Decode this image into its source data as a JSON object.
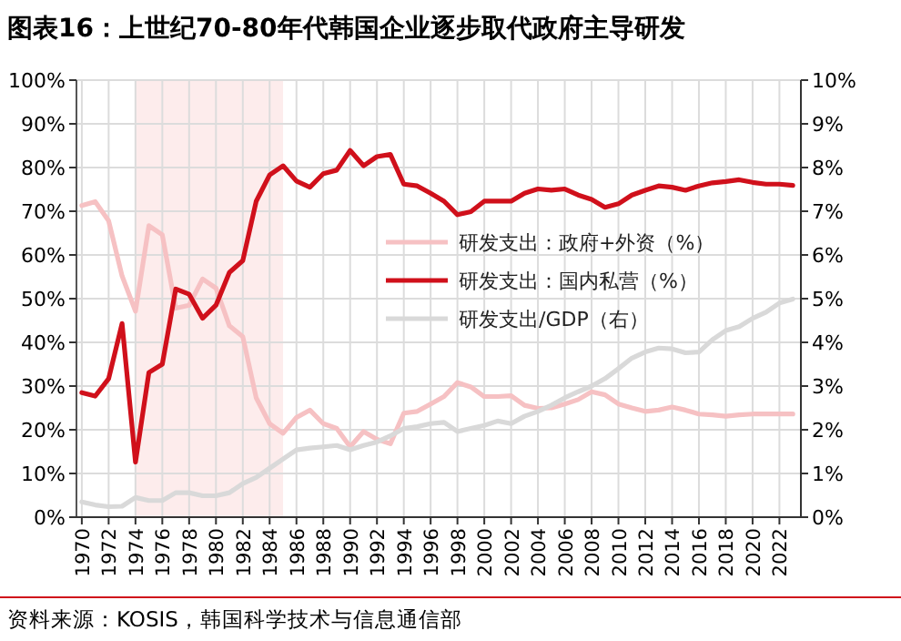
{
  "chart_data": {
    "type": "line",
    "title": "图表16：上世纪70-80年代韩国企业逐步取代政府主导研发",
    "annotations": [
      "资料来源：KOSIS，韩国科学技术与信息通信部"
    ],
    "x": [
      1970,
      1971,
      1972,
      1973,
      1974,
      1975,
      1976,
      1977,
      1978,
      1979,
      1980,
      1981,
      1982,
      1983,
      1984,
      1985,
      1986,
      1987,
      1988,
      1989,
      1990,
      1991,
      1992,
      1993,
      1994,
      1995,
      1996,
      1997,
      1998,
      1999,
      2000,
      2001,
      2002,
      2003,
      2004,
      2005,
      2006,
      2007,
      2008,
      2009,
      2010,
      2011,
      2012,
      2013,
      2014,
      2015,
      2016,
      2017,
      2018,
      2019,
      2020,
      2021,
      2022,
      2023
    ],
    "series": [
      {
        "name": "研发支出：政府+外资（%）",
        "color": "#f6c1c3",
        "values": [
          71.3,
          72.2,
          67.8,
          55.2,
          47.1,
          66.7,
          64.6,
          47.8,
          48.5,
          54.5,
          52.4,
          43.8,
          41.3,
          27.3,
          21.4,
          19.2,
          22.8,
          24.5,
          21.4,
          20.3,
          16.1,
          19.6,
          17.8,
          16.8,
          23.8,
          24.2,
          25.9,
          27.6,
          30.8,
          29.8,
          27.6,
          27.6,
          27.8,
          25.6,
          24.9,
          25,
          25.9,
          26.9,
          28.7,
          28,
          25.9,
          25,
          24.2,
          24.5,
          25.2,
          24.5,
          23.6,
          23.4,
          23.1,
          23.4,
          23.6,
          23.6,
          23.6,
          23.6
        ]
      },
      {
        "name": "研发支出：国内私营（%）",
        "color": "#d0101b",
        "values": [
          28.5,
          27.7,
          31.7,
          44.3,
          12.6,
          33.1,
          35,
          52.2,
          51,
          45.5,
          48.5,
          56,
          58.7,
          72.3,
          78.3,
          80.4,
          76.9,
          75.5,
          78.6,
          79.4,
          83.9,
          80.4,
          82.5,
          83,
          76.2,
          75.8,
          74.1,
          72.3,
          69.2,
          69.9,
          72.3,
          72.3,
          72.3,
          74.1,
          75.1,
          74.8,
          75.1,
          73.7,
          72.7,
          70.9,
          71.7,
          73.7,
          74.8,
          75.8,
          75.5,
          74.8,
          75.8,
          76.5,
          76.8,
          77.2,
          76.6,
          76.2,
          76.2,
          75.9
        ]
      },
      {
        "name": "研发支出/GDP（右）",
        "color": "#d9d9d9",
        "axis": "y2",
        "values": [
          0.35,
          0.28,
          0.24,
          0.25,
          0.45,
          0.38,
          0.38,
          0.56,
          0.56,
          0.49,
          0.49,
          0.56,
          0.77,
          0.91,
          1.12,
          1.33,
          1.54,
          1.58,
          1.61,
          1.64,
          1.54,
          1.64,
          1.72,
          1.86,
          2.03,
          2.07,
          2.14,
          2.17,
          1.96,
          2.03,
          2.1,
          2.2,
          2.14,
          2.31,
          2.42,
          2.56,
          2.73,
          2.87,
          3.0,
          3.17,
          3.4,
          3.64,
          3.78,
          3.87,
          3.85,
          3.76,
          3.78,
          4.06,
          4.27,
          4.36,
          4.55,
          4.69,
          4.9,
          4.99
        ]
      }
    ],
    "xlim": [
      1969.6,
      2023.6
    ],
    "xticks": [
      1970,
      1972,
      1974,
      1976,
      1978,
      1980,
      1982,
      1984,
      1986,
      1988,
      1990,
      1992,
      1994,
      1996,
      1998,
      2000,
      2002,
      2004,
      2006,
      2008,
      2010,
      2012,
      2014,
      2016,
      2018,
      2020,
      2022
    ],
    "ylim": [
      0,
      100
    ],
    "yticks": [
      {
        "value": 0,
        "label": "0%"
      },
      {
        "value": 10,
        "label": "10%"
      },
      {
        "value": 20,
        "label": "20%"
      },
      {
        "value": 30,
        "label": "30%"
      },
      {
        "value": 40,
        "label": "40%"
      },
      {
        "value": 50,
        "label": "50%"
      },
      {
        "value": 60,
        "label": "60%"
      },
      {
        "value": 70,
        "label": "70%"
      },
      {
        "value": 80,
        "label": "80%"
      },
      {
        "value": 90,
        "label": "90%"
      },
      {
        "value": 100,
        "label": "100%"
      }
    ],
    "y2lim": [
      0,
      10
    ],
    "y2ticks": [
      {
        "value": 0,
        "label": "0%"
      },
      {
        "value": 1,
        "label": "1%"
      },
      {
        "value": 2,
        "label": "2%"
      },
      {
        "value": 3,
        "label": "3%"
      },
      {
        "value": 4,
        "label": "4%"
      },
      {
        "value": 5,
        "label": "5%"
      },
      {
        "value": 6,
        "label": "6%"
      },
      {
        "value": 7,
        "label": "7%"
      },
      {
        "value": 8,
        "label": "8%"
      },
      {
        "value": 9,
        "label": "9%"
      },
      {
        "value": 10,
        "label": "10%"
      }
    ],
    "bands": [
      {
        "axis": "x",
        "from": 1974,
        "to": 1985,
        "color": "#fdecec"
      }
    ],
    "grid": true,
    "legend": "right",
    "marker": "none",
    "line_style": "solid"
  }
}
